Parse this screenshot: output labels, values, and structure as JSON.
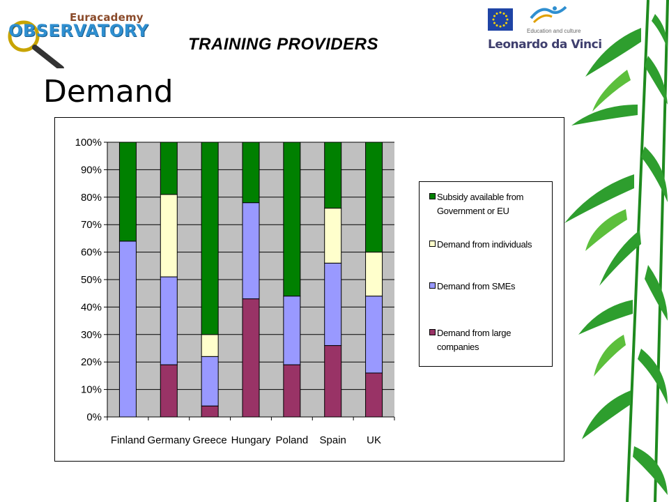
{
  "header": {
    "logo_top": "Euracademy",
    "logo_main": "OBSERVATORY",
    "section_title": "TRAINING PROVIDERS",
    "page_title": "Demand",
    "partner_subtitle": "Education and culture",
    "partner_name": "Leonardo da Vinci"
  },
  "colors": {
    "subsidy": "#008000",
    "individuals": "#ffffcc",
    "smes": "#9999ff",
    "large": "#993366",
    "plot_bg": "#c0c0c0",
    "grid": "#000000"
  },
  "chart_data": {
    "type": "bar",
    "stacked": true,
    "percent": true,
    "categories": [
      "Finland",
      "Germany",
      "Greece",
      "Hungary",
      "Poland",
      "Spain",
      "UK"
    ],
    "series": [
      {
        "name": "Demand from large companies",
        "color": "#993366",
        "values": [
          0,
          19,
          4,
          43,
          19,
          26,
          16
        ]
      },
      {
        "name": "Demand from SMEs",
        "color": "#9999ff",
        "values": [
          64,
          32,
          18,
          35,
          25,
          30,
          28
        ]
      },
      {
        "name": "Demand from individuals",
        "color": "#ffffcc",
        "values": [
          0,
          30,
          8,
          0,
          0,
          20,
          16
        ]
      },
      {
        "name": "Subsidy available from Government or EU",
        "color": "#008000",
        "values": [
          36,
          19,
          70,
          22,
          56,
          24,
          40
        ]
      }
    ],
    "ylim": [
      0,
      100
    ],
    "yticks": [
      "0%",
      "10%",
      "20%",
      "30%",
      "40%",
      "50%",
      "60%",
      "70%",
      "80%",
      "90%",
      "100%"
    ],
    "legend_position": "right",
    "grid": true
  }
}
